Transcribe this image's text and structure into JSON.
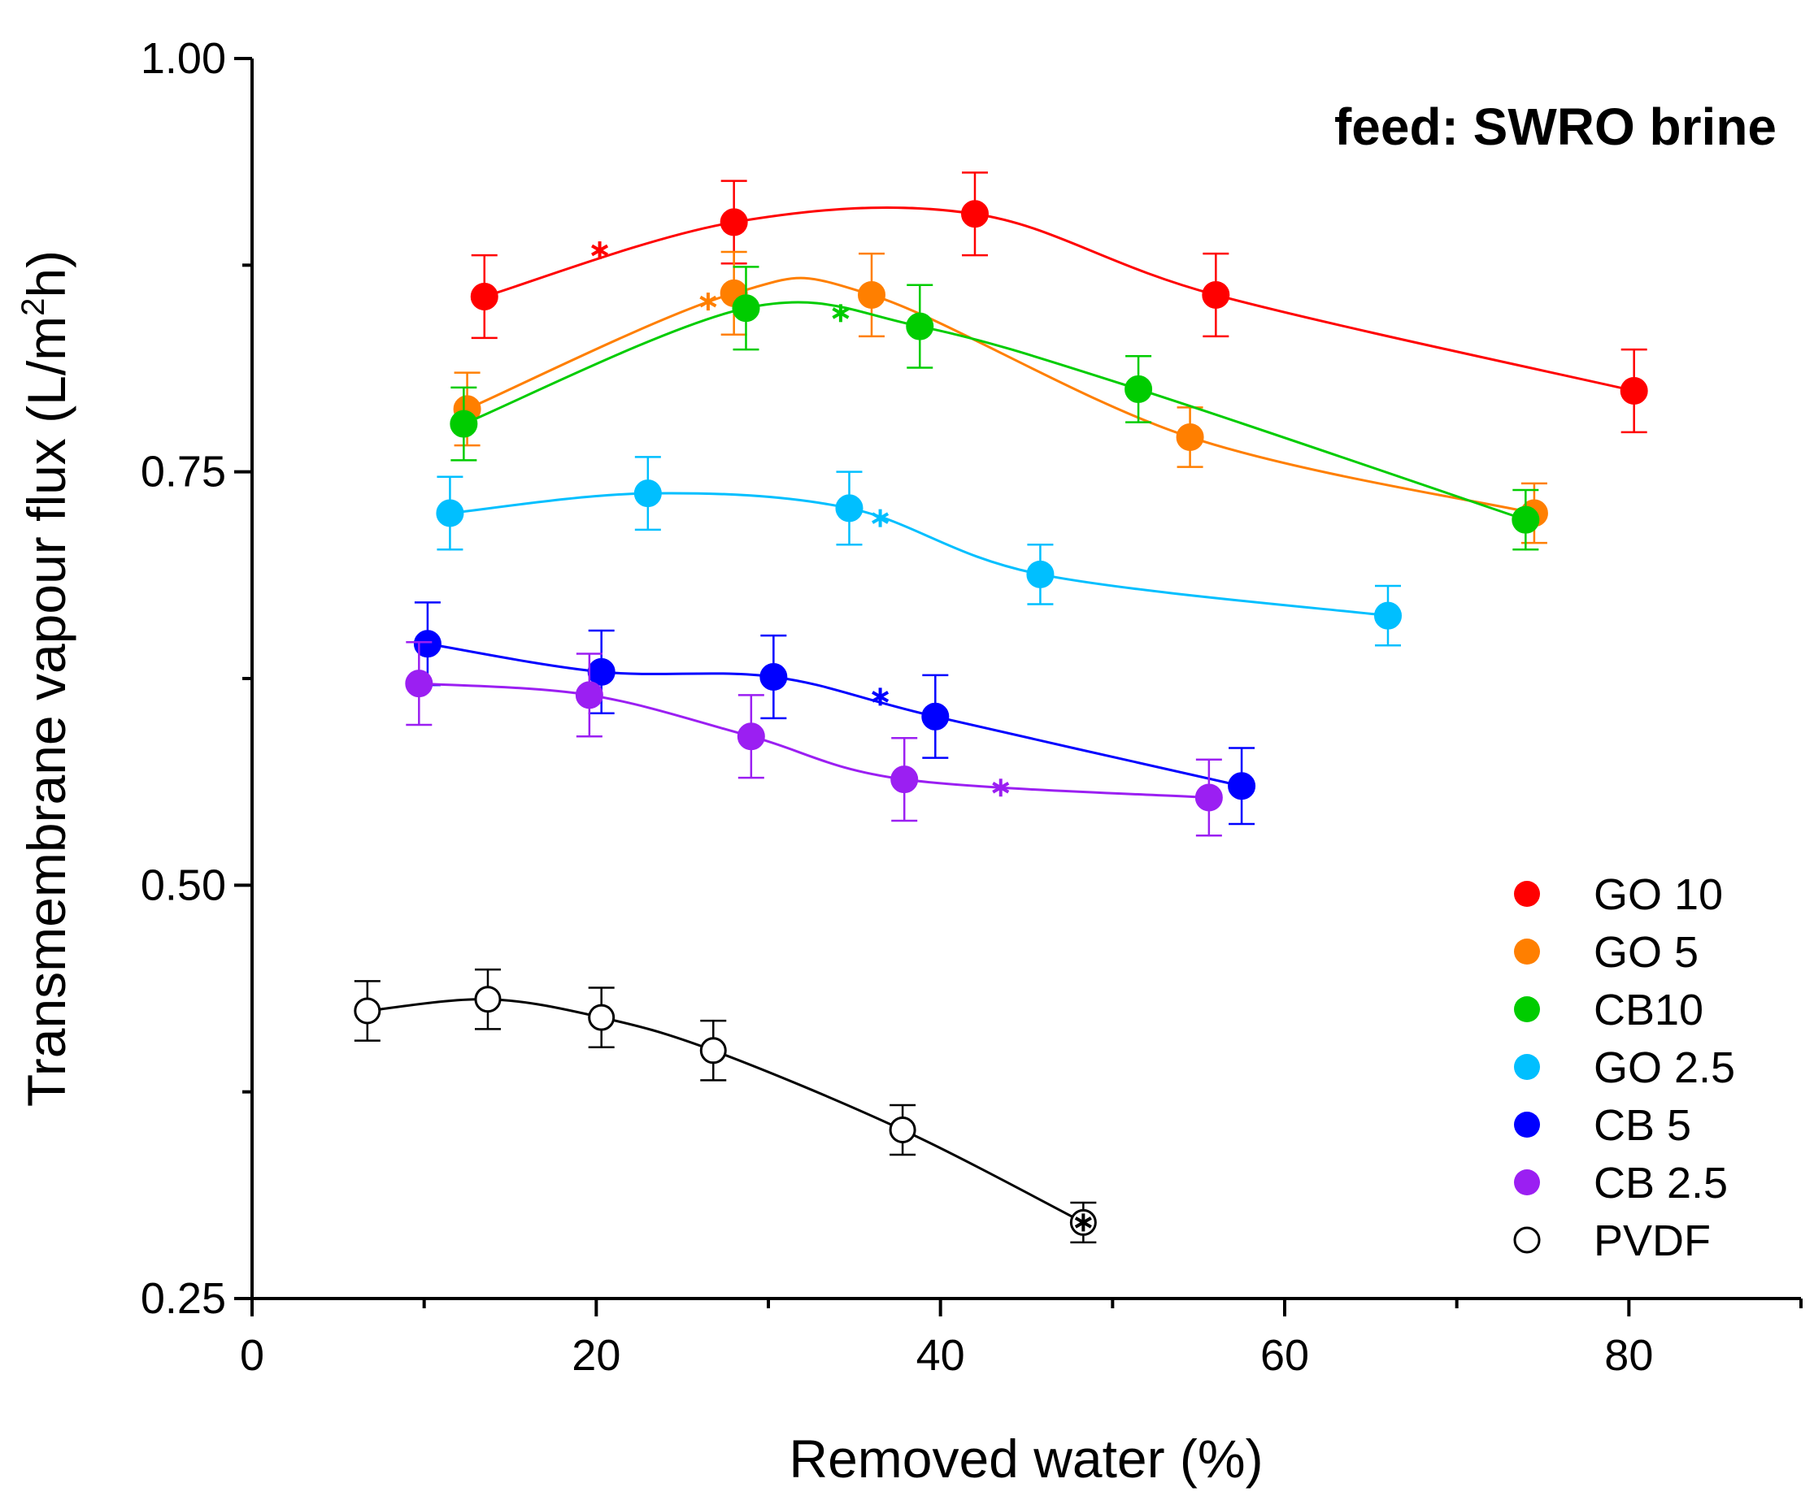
{
  "chart_data": {
    "type": "line",
    "xlabel": "Removed water (%)",
    "ylabel_main": "Transmembrane vapour flux (L/m",
    "ylabel_sup": "2",
    "ylabel_end": "h)",
    "annotation": "feed: SWRO brine",
    "xlim": [
      0,
      90
    ],
    "ylim": [
      0.25,
      1.0
    ],
    "x_ticks": [
      {
        "value": 0,
        "label": "0"
      },
      {
        "value": 20,
        "label": "20"
      },
      {
        "value": 40,
        "label": "40"
      },
      {
        "value": 60,
        "label": "60"
      },
      {
        "value": 80,
        "label": "80"
      }
    ],
    "x_minor_ticks": [
      10,
      30,
      50,
      70,
      90
    ],
    "y_ticks": [
      {
        "value": 0.25,
        "label": "0.25"
      },
      {
        "value": 0.5,
        "label": "0.50"
      },
      {
        "value": 0.75,
        "label": "0.75"
      },
      {
        "value": 1.0,
        "label": "1.00"
      }
    ],
    "legend_position": "bottom-right",
    "series": [
      {
        "name": "GO 10",
        "color": "#ff0000",
        "filled": true,
        "x": [
          13.5,
          28,
          42,
          56,
          80.3
        ],
        "y": [
          0.856,
          0.901,
          0.906,
          0.857,
          0.799
        ],
        "err": [
          0.025,
          0.025,
          0.025,
          0.025,
          0.025
        ],
        "star": {
          "x": 20.2,
          "y": 0.884
        }
      },
      {
        "name": "GO 5",
        "color": "#ff7f00",
        "filled": true,
        "x": [
          12.5,
          28,
          36,
          54.5,
          74.5
        ],
        "y": [
          0.788,
          0.858,
          0.857,
          0.771,
          0.725
        ],
        "err": [
          0.022,
          0.025,
          0.025,
          0.018,
          0.018
        ],
        "star": {
          "x": 26.5,
          "y": 0.853
        }
      },
      {
        "name": "CB10",
        "color": "#00cc00",
        "filled": true,
        "x": [
          12.3,
          28.7,
          38.8,
          51.5,
          74
        ],
        "y": [
          0.779,
          0.849,
          0.838,
          0.8,
          0.721
        ],
        "err": [
          0.022,
          0.025,
          0.025,
          0.02,
          0.018
        ],
        "star": {
          "x": 34.2,
          "y": 0.846
        }
      },
      {
        "name": "GO 2.5",
        "color": "#00bfff",
        "filled": true,
        "x": [
          11.5,
          23,
          34.7,
          45.8,
          66
        ],
        "y": [
          0.725,
          0.737,
          0.728,
          0.688,
          0.663
        ],
        "err": [
          0.022,
          0.022,
          0.022,
          0.018,
          0.018
        ],
        "star": {
          "x": 36.5,
          "y": 0.722
        }
      },
      {
        "name": "CB 5",
        "color": "#0000ff",
        "filled": true,
        "x": [
          10.2,
          20.3,
          30.3,
          39.7,
          57.5
        ],
        "y": [
          0.646,
          0.629,
          0.626,
          0.602,
          0.56
        ],
        "err": [
          0.025,
          0.025,
          0.025,
          0.025,
          0.023
        ],
        "star": {
          "x": 36.5,
          "y": 0.614
        }
      },
      {
        "name": "CB 2.5",
        "color": "#9b1ff2",
        "filled": true,
        "x": [
          9.7,
          19.6,
          29,
          37.9,
          55.6
        ],
        "y": [
          0.622,
          0.615,
          0.59,
          0.564,
          0.553
        ],
        "err": [
          0.025,
          0.025,
          0.025,
          0.025,
          0.023
        ],
        "star": {
          "x": 43.5,
          "y": 0.559
        }
      },
      {
        "name": "PVDF",
        "color": "#000000",
        "filled": false,
        "x": [
          6.7,
          13.7,
          20.3,
          26.8,
          37.8,
          48.3
        ],
        "y": [
          0.424,
          0.431,
          0.42,
          0.4,
          0.352,
          0.296
        ],
        "err": [
          0.018,
          0.018,
          0.018,
          0.018,
          0.015,
          0.012
        ],
        "star": {
          "x": 48.3,
          "y": 0.296
        }
      }
    ]
  }
}
